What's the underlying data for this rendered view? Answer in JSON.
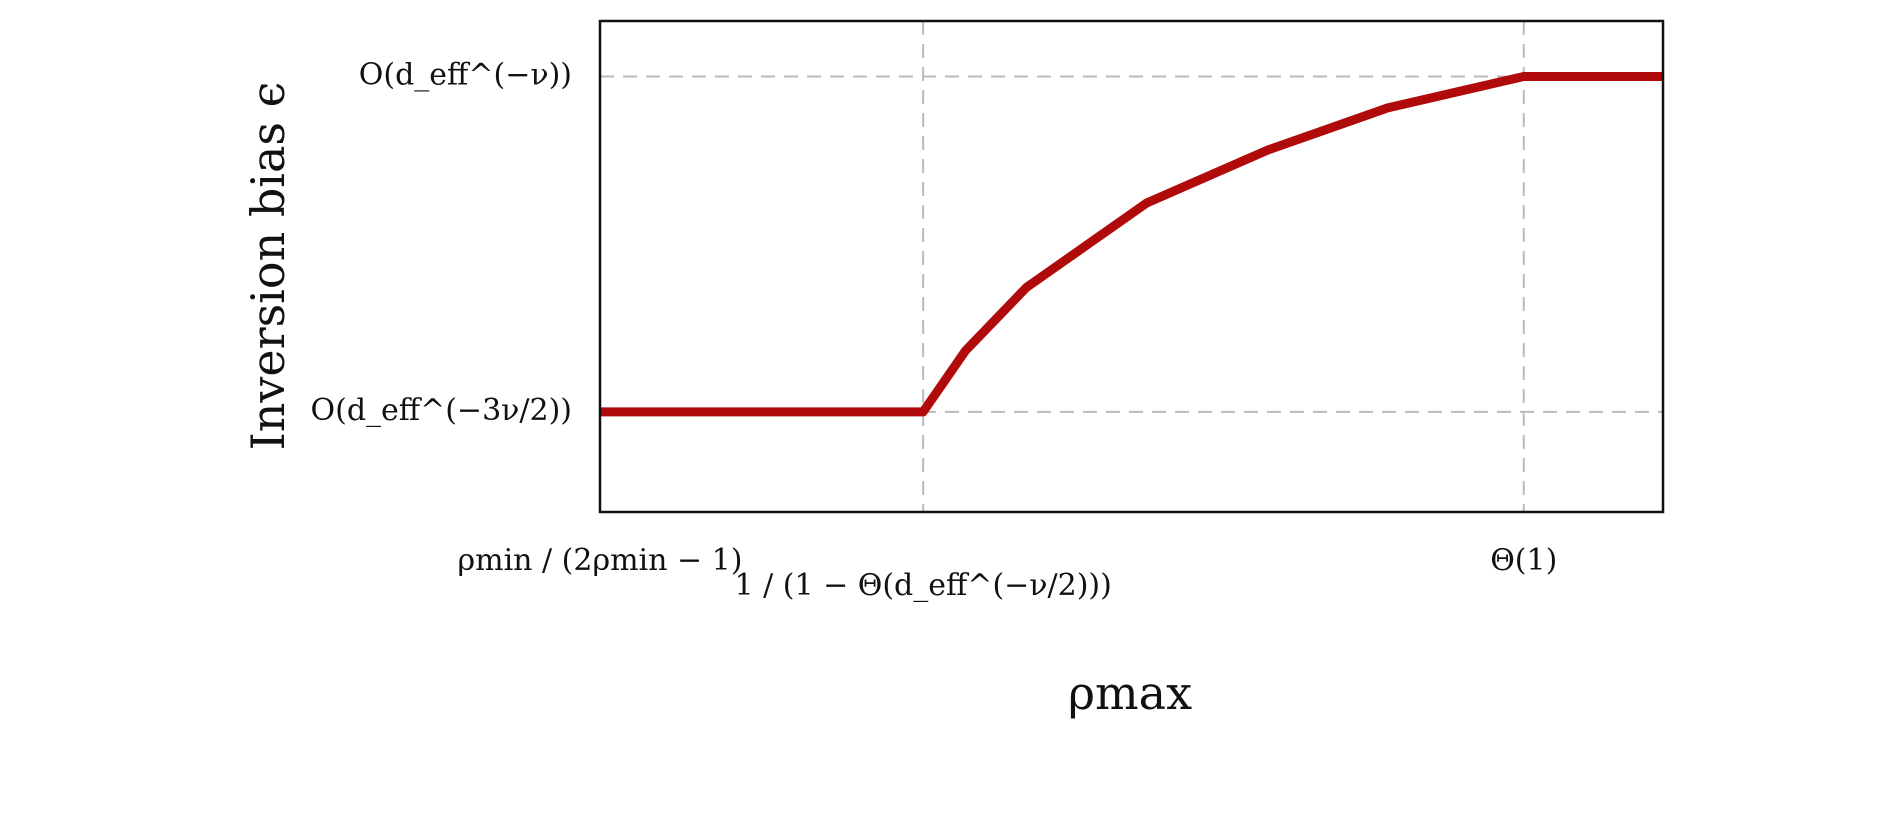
{
  "chart_data": {
    "type": "line",
    "x_label": "ρmax",
    "y_label": "Inversion bias ϵ",
    "x": [
      0,
      30.4,
      34.4,
      40.1,
      51.4,
      62.8,
      74.1,
      86.9,
      100
    ],
    "series": [
      {
        "name": "Inversion bias",
        "color": "#b00a0a",
        "values": [
          20.4,
          20.4,
          32.9,
          45.7,
          62.9,
          73.7,
          82.3,
          88.7,
          88.7
        ]
      }
    ],
    "xlim": [
      0,
      100
    ],
    "ylim": [
      0,
      100
    ],
    "xticks": [
      {
        "value": 0,
        "label": "ρmin / (2ρmin − 1)"
      },
      {
        "value": 30.4,
        "label": "1 / (1 − Θ(d_eff^(−ν/2)))"
      },
      {
        "value": 86.9,
        "label": "Θ(1)"
      }
    ],
    "yticks": [
      {
        "value": 20.4,
        "label": "O(d_eff^(−3ν/2))"
      },
      {
        "value": 88.7,
        "label": "O(d_eff^(−ν))"
      }
    ],
    "grid": true
  }
}
